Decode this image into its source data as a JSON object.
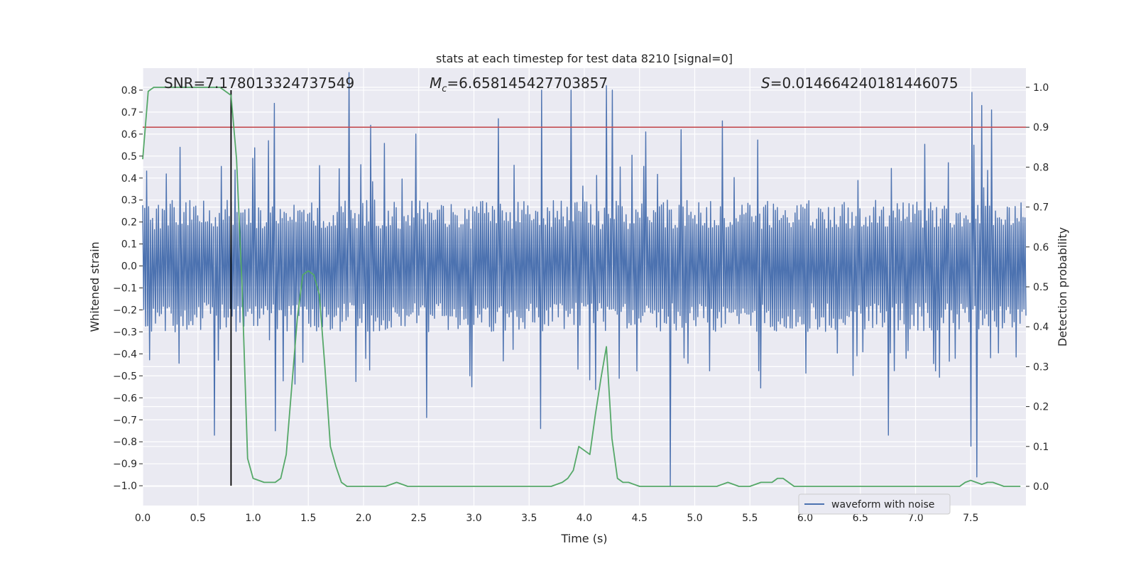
{
  "chart_data": {
    "type": "line",
    "title": "stats at each timestep for test data 8210 [signal=0]",
    "xlabel": "Time (s)",
    "ylabel_left": "Whitened strain",
    "ylabel_right": "Detection probability",
    "xlim": [
      0.0,
      8.0
    ],
    "ylim_left": [
      -1.09,
      0.9
    ],
    "ylim_right": [
      -0.048,
      1.048
    ],
    "x_ticks": [
      "0.0",
      "0.5",
      "1.0",
      "1.5",
      "2.0",
      "2.5",
      "3.0",
      "3.5",
      "4.0",
      "4.5",
      "5.0",
      "5.5",
      "6.0",
      "6.5",
      "7.0",
      "7.5"
    ],
    "y_left_ticks": [
      "0.8",
      "0.7",
      "0.6",
      "0.5",
      "0.4",
      "0.3",
      "0.2",
      "0.1",
      "0.0",
      "−0.1",
      "−0.2",
      "−0.3",
      "−0.4",
      "−0.5",
      "−0.6",
      "−0.7",
      "−0.8",
      "−0.9",
      "−1.0"
    ],
    "y_right_ticks": [
      "0.0",
      "0.1",
      "0.2",
      "0.3",
      "0.4",
      "0.5",
      "0.6",
      "0.7",
      "0.8",
      "0.9",
      "1.0"
    ],
    "annotations": {
      "snr": "SNR=7.178013324737549",
      "mc_symbol": "M",
      "mc_sub": "c",
      "mc_value": "=6.658145427703857",
      "s_symbol": "S",
      "s_value": "=0.014664240181446075"
    },
    "legend": {
      "label": "waveform with noise",
      "location": "lower-right"
    },
    "threshold_line": {
      "axis": "right",
      "value": 0.9,
      "color": "#c44e52"
    },
    "marker_line": {
      "x": 0.8,
      "y_from": -1.0,
      "y_to": 0.8,
      "color": "#000000"
    },
    "waveform": {
      "name": "waveform with noise",
      "color": "#4c72b0",
      "x_range": [
        0.0,
        8.0
      ],
      "samples": 900,
      "typical_amplitude": 0.3,
      "peaks_top": [
        [
          0.35,
          0.54
        ],
        [
          1.15,
          0.57
        ],
        [
          1.2,
          0.74
        ],
        [
          1.88,
          0.88
        ],
        [
          2.07,
          0.64
        ],
        [
          2.47,
          0.6
        ],
        [
          3.22,
          0.67
        ],
        [
          3.62,
          0.8
        ],
        [
          3.88,
          0.8
        ],
        [
          4.2,
          0.82
        ],
        [
          4.25,
          0.8
        ],
        [
          4.56,
          0.61
        ],
        [
          4.88,
          0.62
        ],
        [
          5.25,
          0.66
        ],
        [
          7.52,
          0.79
        ],
        [
          7.6,
          0.73
        ],
        [
          7.7,
          0.71
        ]
      ],
      "peaks_bottom": [
        [
          0.64,
          -0.77
        ],
        [
          1.2,
          -0.75
        ],
        [
          2.57,
          -0.69
        ],
        [
          3.6,
          -0.74
        ],
        [
          4.77,
          -1.0
        ],
        [
          6.75,
          -0.77
        ],
        [
          7.55,
          -0.96
        ],
        [
          7.5,
          -0.82
        ]
      ]
    },
    "series": [
      {
        "name": "detection probability",
        "axis": "right",
        "color": "#55a868",
        "x": [
          0.0,
          0.05,
          0.1,
          0.2,
          0.3,
          0.4,
          0.5,
          0.6,
          0.7,
          0.75,
          0.8,
          0.85,
          0.9,
          0.95,
          1.0,
          1.1,
          1.15,
          1.2,
          1.25,
          1.3,
          1.35,
          1.4,
          1.45,
          1.5,
          1.55,
          1.6,
          1.65,
          1.7,
          1.75,
          1.8,
          1.85,
          1.9,
          2.0,
          2.1,
          2.2,
          2.3,
          2.4,
          2.5,
          2.6,
          2.8,
          3.0,
          3.2,
          3.4,
          3.6,
          3.7,
          3.8,
          3.85,
          3.9,
          3.95,
          4.0,
          4.05,
          4.1,
          4.15,
          4.2,
          4.25,
          4.3,
          4.35,
          4.4,
          4.5,
          4.6,
          4.8,
          5.0,
          5.1,
          5.2,
          5.3,
          5.4,
          5.5,
          5.6,
          5.65,
          5.7,
          5.75,
          5.8,
          5.9,
          6.0,
          6.2,
          6.4,
          6.6,
          6.8,
          7.0,
          7.2,
          7.3,
          7.4,
          7.45,
          7.5,
          7.55,
          7.6,
          7.65,
          7.7,
          7.8,
          7.9,
          7.95
        ],
        "y": [
          0.82,
          0.99,
          1.0,
          1.0,
          1.0,
          1.0,
          1.0,
          1.0,
          1.0,
          0.99,
          0.98,
          0.82,
          0.5,
          0.07,
          0.02,
          0.01,
          0.01,
          0.01,
          0.02,
          0.08,
          0.25,
          0.42,
          0.53,
          0.54,
          0.53,
          0.48,
          0.3,
          0.1,
          0.05,
          0.01,
          0.0,
          0.0,
          0.0,
          0.0,
          0.0,
          0.01,
          0.0,
          0.0,
          0.0,
          0.0,
          0.0,
          0.0,
          0.0,
          0.0,
          0.0,
          0.01,
          0.02,
          0.04,
          0.1,
          0.09,
          0.08,
          0.18,
          0.27,
          0.35,
          0.12,
          0.02,
          0.01,
          0.01,
          0.0,
          0.0,
          0.0,
          0.0,
          0.0,
          0.0,
          0.01,
          0.0,
          0.0,
          0.01,
          0.01,
          0.01,
          0.02,
          0.02,
          0.0,
          0.0,
          0.0,
          0.0,
          0.0,
          0.0,
          0.0,
          0.0,
          0.0,
          0.0,
          0.01,
          0.015,
          0.01,
          0.005,
          0.01,
          0.01,
          0.0,
          0.0,
          0.0
        ]
      }
    ]
  }
}
